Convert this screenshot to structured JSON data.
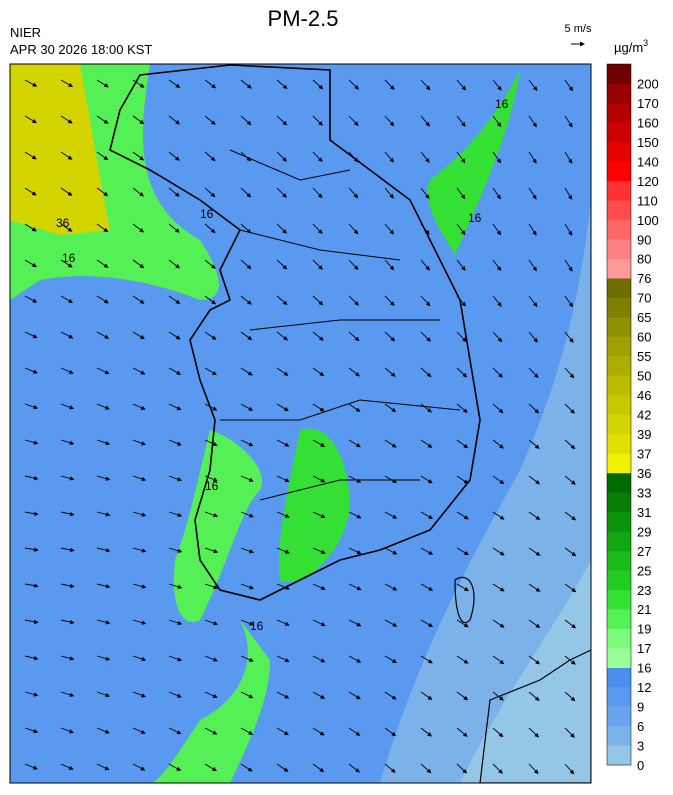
{
  "header": {
    "title": "PM-2.5",
    "agency": "NIER",
    "timestamp": "APR 30 2026 18:00 KST",
    "wind_scale": "5 m/s"
  },
  "colorbar": {
    "unit": "µg/m",
    "unit_superscript": "3",
    "ticks": [
      0,
      3,
      6,
      9,
      12,
      16,
      17,
      19,
      21,
      23,
      25,
      27,
      29,
      31,
      33,
      36,
      37,
      39,
      42,
      46,
      50,
      55,
      60,
      65,
      70,
      76,
      80,
      90,
      100,
      110,
      120,
      140,
      150,
      160,
      170,
      200
    ],
    "colors": [
      "#94c6e7",
      "#7cb2ea",
      "#6aa3ed",
      "#5a99f0",
      "#4a8ef0",
      "#99ff99",
      "#7dfb7d",
      "#55f055",
      "#33e033",
      "#22cc22",
      "#1aba1a",
      "#11a611",
      "#0a930a",
      "#067f06",
      "#006b00",
      "#f2f200",
      "#e0e000",
      "#d4d400",
      "#c8c800",
      "#bcbc00",
      "#aeae00",
      "#a0a000",
      "#909000",
      "#7f7f00",
      "#6e6e00",
      "#ff9999",
      "#ff8080",
      "#ff6666",
      "#ff4c4c",
      "#ff3333",
      "#ff0000",
      "#e60000",
      "#cc0000",
      "#b30000",
      "#990000",
      "#700000"
    ]
  },
  "contour_labels": {
    "low": "16",
    "high": "36"
  }
}
